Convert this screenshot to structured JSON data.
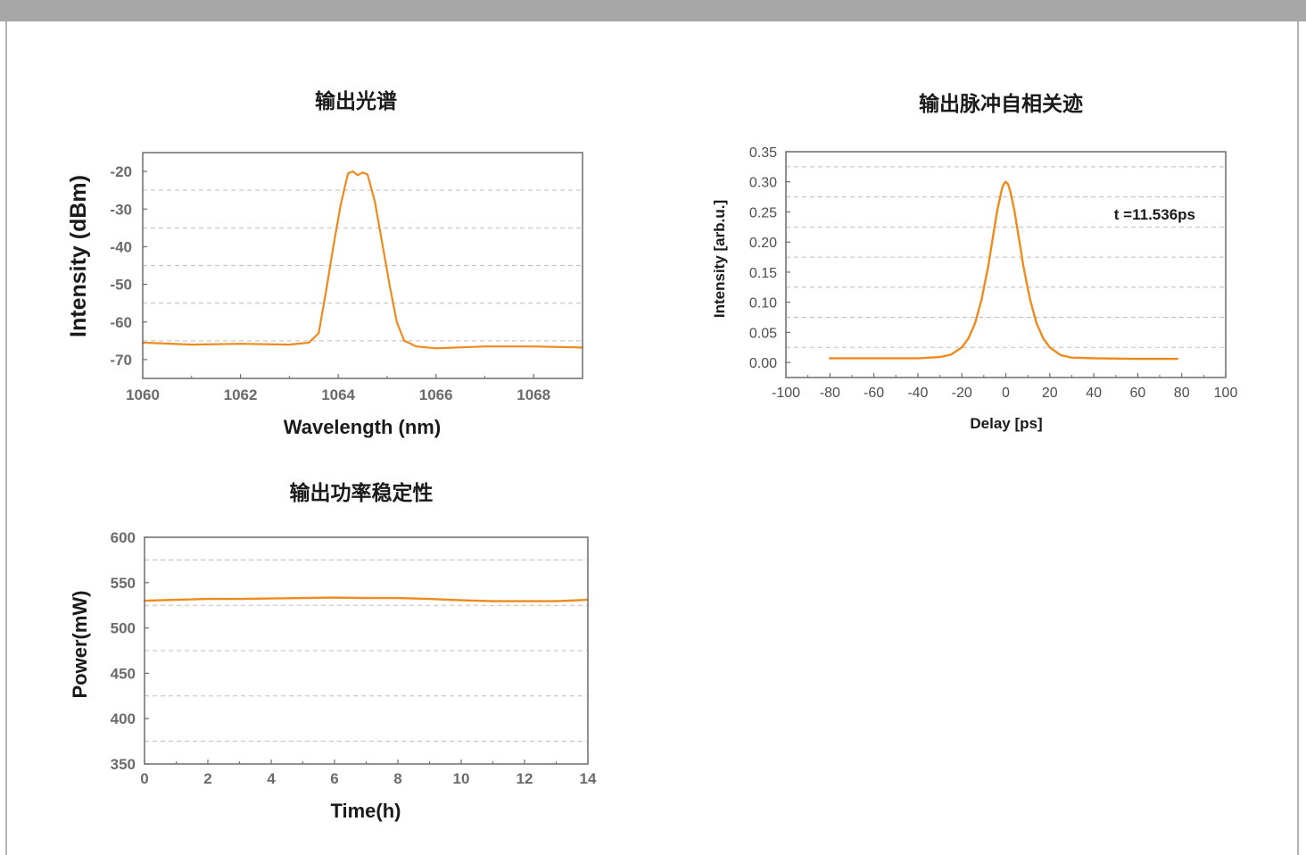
{
  "colors": {
    "series": "#f08a1c",
    "grid": "#bdbdbd",
    "frame": "#6d6d6d",
    "topbar": "#a6a6a6"
  },
  "chart_data": [
    {
      "id": "spectrum",
      "type": "line",
      "title": "输出光谱",
      "xlabel": "Wavelength (nm)",
      "ylabel": "Intensity (dBm)",
      "xlim": [
        1060,
        1069
      ],
      "ylim": [
        -75,
        -15
      ],
      "xticks": [
        1060,
        1062,
        1064,
        1066,
        1068
      ],
      "yticks": [
        -70,
        -60,
        -50,
        -40,
        -30,
        -20
      ],
      "grid": "horizontal dashed",
      "series": [
        {
          "x": [
            1060.0,
            1061.0,
            1062.0,
            1063.0,
            1063.4,
            1063.6,
            1063.75,
            1063.9,
            1064.05,
            1064.2,
            1064.3,
            1064.4,
            1064.5,
            1064.6,
            1064.75,
            1064.9,
            1065.05,
            1065.2,
            1065.35,
            1065.6,
            1066.0,
            1067.0,
            1068.0,
            1069.0
          ],
          "y": [
            -65.5,
            -66.0,
            -65.8,
            -66.0,
            -65.5,
            -63.0,
            -52.0,
            -40.0,
            -29.0,
            -20.5,
            -20.0,
            -21.0,
            -20.3,
            -20.8,
            -28.0,
            -39.0,
            -50.0,
            -60.0,
            -65.0,
            -66.5,
            -67.0,
            -66.5,
            -66.5,
            -66.8
          ]
        }
      ]
    },
    {
      "id": "autocorrelation",
      "type": "line",
      "title": "输出脉冲自相关迹",
      "xlabel": "Delay [ps]",
      "ylabel": "Intensity [arb.u.]",
      "xlim": [
        -100,
        100
      ],
      "ylim": [
        -0.025,
        0.35
      ],
      "xticks": [
        -100,
        -80,
        -60,
        -40,
        -20,
        0,
        20,
        40,
        60,
        80,
        100
      ],
      "yticks": [
        0.0,
        0.05,
        0.1,
        0.15,
        0.2,
        0.25,
        0.3,
        0.35
      ],
      "ytick_labels": [
        "0.00",
        "0.05",
        "0.10",
        "0.15",
        "0.20",
        "0.25",
        "0.30",
        "0.35"
      ],
      "grid": "horizontal dashed",
      "annotation": "t =11.536ps",
      "series": [
        {
          "x": [
            -80,
            -60,
            -40,
            -30,
            -25,
            -20,
            -17,
            -14,
            -11,
            -8,
            -6,
            -4,
            -2,
            -1,
            0,
            1,
            2,
            4,
            6,
            8,
            11,
            14,
            17,
            20,
            25,
            30,
            40,
            60,
            78
          ],
          "y": [
            0.007,
            0.007,
            0.007,
            0.009,
            0.013,
            0.025,
            0.04,
            0.065,
            0.105,
            0.16,
            0.205,
            0.25,
            0.285,
            0.296,
            0.3,
            0.296,
            0.285,
            0.25,
            0.205,
            0.16,
            0.105,
            0.065,
            0.04,
            0.025,
            0.012,
            0.008,
            0.007,
            0.006,
            0.006
          ]
        }
      ]
    },
    {
      "id": "power",
      "type": "line",
      "title": "输出功率稳定性",
      "xlabel": "Time(h)",
      "ylabel": "Power(mW)",
      "xlim": [
        0,
        14
      ],
      "ylim": [
        350,
        600
      ],
      "xticks": [
        0,
        2,
        4,
        6,
        8,
        10,
        12,
        14
      ],
      "yticks": [
        350,
        400,
        450,
        500,
        550,
        600
      ],
      "grid": "horizontal dashed",
      "series": [
        {
          "x": [
            0,
            1,
            2,
            3,
            4,
            5,
            6,
            7,
            8,
            9,
            10,
            11,
            12,
            13,
            14
          ],
          "y": [
            530,
            531,
            532,
            532,
            532.5,
            533,
            533.5,
            533,
            533,
            532,
            530.5,
            529.5,
            529.5,
            529.5,
            531
          ]
        }
      ]
    }
  ]
}
